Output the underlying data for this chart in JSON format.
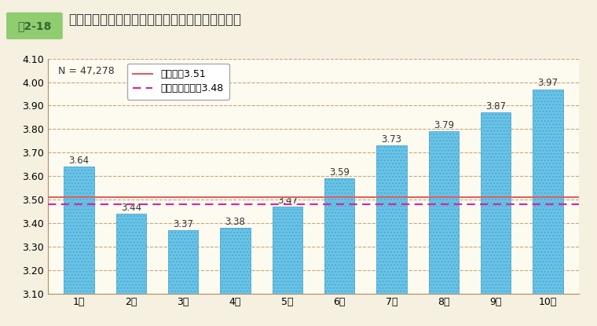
{
  "categories": [
    "1級",
    "2級",
    "3級",
    "4級",
    "5級",
    "6級",
    "7級",
    "8級",
    "9級",
    "10級"
  ],
  "values": [
    3.64,
    3.44,
    3.37,
    3.38,
    3.47,
    3.59,
    3.73,
    3.79,
    3.87,
    3.97
  ],
  "bar_color": "#6BC4E8",
  "bar_edge_color": "#4AAAD0",
  "hatch_pattern": "....",
  "ylim": [
    3.1,
    4.1
  ],
  "yticks": [
    3.1,
    3.2,
    3.3,
    3.4,
    3.5,
    3.6,
    3.7,
    3.8,
    3.9,
    4.0,
    4.1
  ],
  "grid_color": "#C8A878",
  "grid_linestyle": "--",
  "grid_linewidth": 0.8,
  "fig_bg_color": "#F5F0E0",
  "plot_bg_color": "#FDFAF0",
  "line_mean_all": 3.51,
  "line_mean_gyou": 3.48,
  "line_mean_all_color": "#E06060",
  "line_mean_gyou_color": "#E020A0",
  "legend_mean_all_label": "総平均値3.51",
  "legend_mean_gyou_label": "行（一）平均値3.48",
  "n_label": "N = 47,278",
  "title_label1": "囲2-18",
  "title_label2": "行政職俣給表（一）の職務の級別の回答の平均値",
  "title_fontsize": 12,
  "axis_fontsize": 9,
  "label_fontsize": 9,
  "value_fontsize": 8.5,
  "title_color": "#333333",
  "frame_color": "#B09060",
  "tick_color": "#333333",
  "title_box_color": "#90CC70",
  "title_box_text_color": "#336633"
}
